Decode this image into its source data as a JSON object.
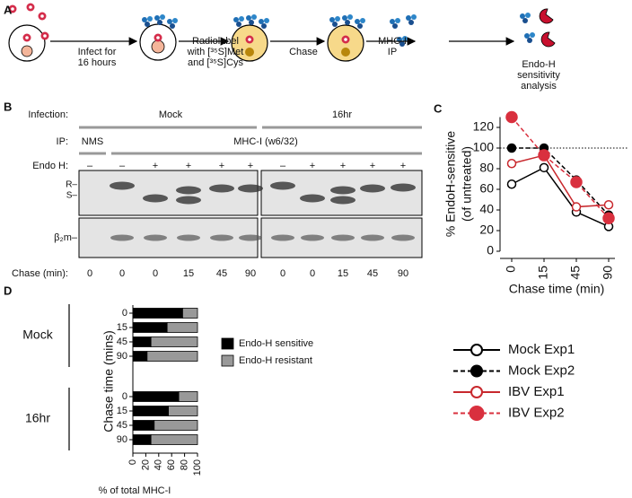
{
  "panel_a": {
    "label": "A",
    "steps": [
      {
        "lines": [
          "Infect for",
          "16 hours"
        ]
      },
      {
        "lines": [
          "Radiolabel",
          "with [³⁵S]Met",
          "and [³⁵S]Cys"
        ]
      },
      {
        "lines": [
          "Chase"
        ]
      },
      {
        "lines": [
          "MHC-I",
          "IP"
        ]
      },
      {
        "lines": [
          "Endo-H",
          "sensitivity",
          "analysis"
        ]
      }
    ]
  },
  "panel_b": {
    "label": "B",
    "infection_label": "Infection:",
    "infection_groups": [
      "Mock",
      "16hr"
    ],
    "ip_label": "IP:",
    "ip_groups": [
      "NMS",
      "MHC-I (w6/32)"
    ],
    "endo_label": "Endo H:",
    "endo_lanes": [
      "–",
      "–",
      "+",
      "+",
      "+",
      "+",
      "–",
      "+",
      "+",
      "+",
      "+"
    ],
    "band_labels": [
      "R–",
      "S–"
    ],
    "b2m_label": "β₂m–",
    "chase_label": "Chase (min):",
    "chase_lanes": [
      "0",
      "0",
      "0",
      "15",
      "45",
      "90",
      "0",
      "0",
      "15",
      "45",
      "90"
    ]
  },
  "chart_data": [
    {
      "label": "C",
      "type": "line",
      "categories": [
        "0",
        "15",
        "45",
        "90"
      ],
      "x_label": "Chase time (min)",
      "y_label": [
        "% EndoH-sensitive",
        "(of untreated)"
      ],
      "ylim": [
        0,
        130
      ],
      "yticks": [
        0,
        20,
        40,
        60,
        80,
        100,
        120
      ],
      "reference_line": 100,
      "series": [
        {
          "name": "Mock Exp1",
          "color": "#000000",
          "marker": "open",
          "dashed": false,
          "values": [
            65,
            81,
            38,
            24
          ]
        },
        {
          "name": "Mock Exp2",
          "color": "#000000",
          "marker": "filled",
          "dashed": true,
          "values": [
            100,
            100,
            69,
            35
          ]
        },
        {
          "name": "IBV Exp1",
          "color": "#c8282d",
          "marker": "open",
          "dashed": false,
          "values": [
            85,
            93,
            43,
            45
          ]
        },
        {
          "name": "IBV Exp2",
          "color": "#d9303e",
          "marker": "filled",
          "dashed": true,
          "values": [
            130,
            93,
            67,
            32
          ]
        }
      ]
    },
    {
      "label": "D",
      "type": "stacked_bar_h",
      "x_label": "% of total MHC-I",
      "y_label": "Chase time (mins)",
      "xlim": [
        0,
        100
      ],
      "xticks": [
        0,
        20,
        40,
        60,
        80,
        100
      ],
      "series": [
        {
          "name": "Endo-H sensitive",
          "color": "#000000"
        },
        {
          "name": "Endo-H resistant",
          "color": "#999999"
        }
      ],
      "groups": [
        {
          "name": "Mock",
          "categories": [
            "0",
            "15",
            "45",
            "90"
          ],
          "values": [
            [
              77,
              53,
              28,
              22
            ],
            [
              23,
              47,
              72,
              78
            ]
          ]
        },
        {
          "name": "16hr",
          "categories": [
            "0",
            "15",
            "45",
            "90"
          ],
          "values": [
            [
              71,
              55,
              33,
              28
            ],
            [
              29,
              45,
              67,
              72
            ]
          ]
        }
      ]
    }
  ]
}
